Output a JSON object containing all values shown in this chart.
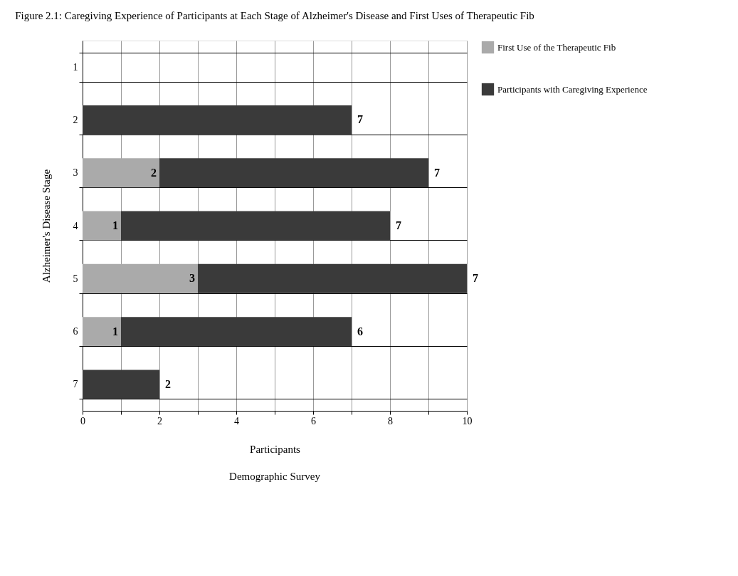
{
  "chart_data": {
    "type": "bar",
    "orientation": "horizontal",
    "stacked": true,
    "title": "Figure 2.1: Caregiving Experience of Participants at Each Stage of Alzheimer's Disease and First Uses of Therapeutic Fib",
    "categories": [
      "1",
      "2",
      "3",
      "4",
      "5",
      "6",
      "7"
    ],
    "series": [
      {
        "name": "First Use of the Therapeutic Fib",
        "color": "#aaaaaa",
        "values": [
          0,
          0,
          2,
          1,
          3,
          1,
          0
        ],
        "value_labels": [
          null,
          null,
          "2",
          "1",
          "3",
          "1",
          null
        ]
      },
      {
        "name": "Participants with Caregiving Experience",
        "color": "#3a3a3a",
        "values": [
          0,
          7,
          7,
          7,
          7,
          6,
          2
        ],
        "value_labels": [
          null,
          "7",
          "7",
          "7",
          "7",
          "6",
          "2"
        ]
      }
    ],
    "xlim": [
      0,
      10
    ],
    "xticks": [
      0,
      {
        "value": 1,
        "label": null
      },
      2,
      {
        "value": 3,
        "label": null
      },
      4,
      {
        "value": 5,
        "label": null
      },
      6,
      {
        "value": 7,
        "label": null
      },
      8,
      {
        "value": 9,
        "label": null
      },
      10
    ],
    "xlabel": "Participants",
    "ylabel": "Alzheimer's Disease Stage",
    "annotations": [
      "Demographic Survey"
    ],
    "grid": true,
    "legend": "right"
  }
}
